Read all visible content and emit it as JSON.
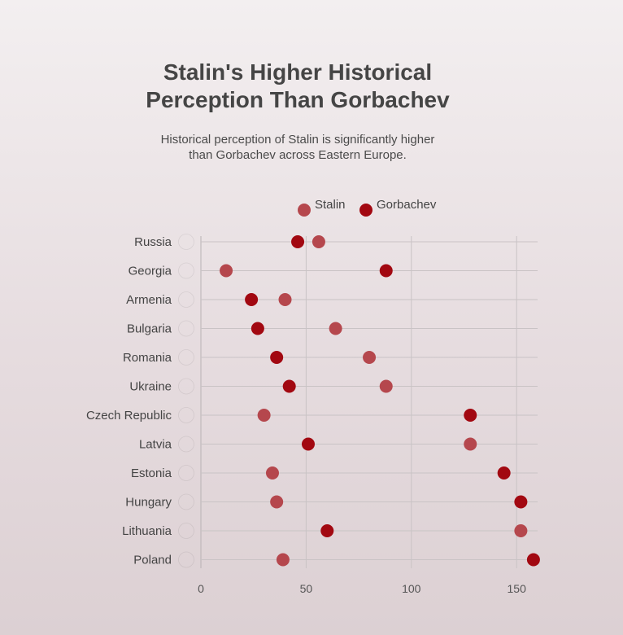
{
  "title": {
    "line1": "Stalin's Higher Historical",
    "line2": "Perception Than Gorbachev"
  },
  "subtitle": {
    "line1": "Historical perception of Stalin is significantly higher",
    "line2": "than Gorbachev across Eastern Europe."
  },
  "legend": {
    "stalin": "Stalin",
    "gorbachev": "Gorbachev"
  },
  "colors": {
    "stalin": "#b5474d",
    "gorbachev": "#a20811",
    "grid": "#c9c3c5",
    "axis": "#b8b2b4"
  },
  "chart_data": {
    "type": "scatter",
    "subtype": "dot-plot",
    "title": "Stalin's Higher Historical Perception Than Gorbachev",
    "subtitle": "Historical perception of Stalin is significantly higher than Gorbachev across Eastern Europe.",
    "xlabel": "",
    "ylabel": "",
    "xlim": [
      0,
      160
    ],
    "xticks": [
      0,
      50,
      100,
      150
    ],
    "grid": true,
    "legend_position": "top-center",
    "categories": [
      "Russia",
      "Georgia",
      "Armenia",
      "Bulgaria",
      "Romania",
      "Ukraine",
      "Czech Republic",
      "Latvia",
      "Estonia",
      "Hungary",
      "Lithuania",
      "Poland"
    ],
    "flags": [
      "russia-flag-icon",
      "georgia-flag-icon",
      "armenia-flag-icon",
      "bulgaria-flag-icon",
      "romania-flag-icon",
      "ukraine-flag-icon",
      "czech-republic-flag-icon",
      "latvia-flag-icon",
      "estonia-flag-icon",
      "hungary-flag-icon",
      "lithuania-flag-icon",
      "poland-flag-icon"
    ],
    "series": [
      {
        "name": "Stalin",
        "values": [
          56,
          12,
          40,
          64,
          80,
          88,
          30,
          128,
          34,
          36,
          152,
          39
        ]
      },
      {
        "name": "Gorbachev",
        "values": [
          46,
          88,
          24,
          27,
          36,
          42,
          128,
          51,
          144,
          152,
          60,
          158
        ]
      }
    ]
  }
}
